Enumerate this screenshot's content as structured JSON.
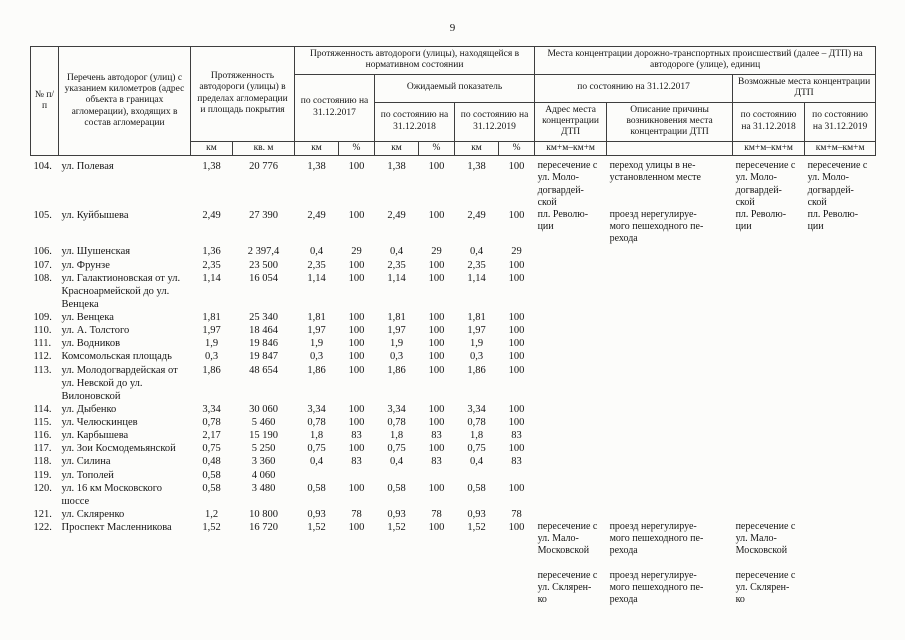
{
  "page": {
    "number": "9"
  },
  "table": {
    "header": {
      "col_num": "№ п/п",
      "col_list": "Перечень автодорог (улиц) с указанием километров (адрес объекта в границах агломерации), входящих в состав агломерации",
      "col_length": "Протяженность автодороги (улицы) в пределах агломерации и площадь покрытия",
      "col_normative": "Протяженность автодороги (улицы), находящейся в нормативном состоянии",
      "col_dtp": "Места концентрации дорожно-транспортных происшествий (далее – ДТП) на автодороге (улице), единиц",
      "as_of_2017": "по состоянию на 31.12.2017",
      "expected": "Ожидаемый показатель",
      "as_of_2018": "по состоянию на 31.12.2018",
      "as_of_2019": "по состоянию на 31.12.2019",
      "dtp_possible": "Возможные места концентрации ДТП",
      "dtp_address": "Адрес места концентрации ДТП",
      "dtp_reason": "Описание причины возникновения места концентрации ДТП",
      "units": {
        "km": "км",
        "sqm": "кв. м",
        "pct": "%",
        "kmm": "км+м–км+м"
      }
    },
    "rows": [
      {
        "num": "104.",
        "name": "ул. Полевая",
        "len_km": "1,38",
        "area": "20 776",
        "km17": "1,38",
        "p17": "100",
        "km18": "1,38",
        "p18": "100",
        "km19": "1,38",
        "p19": "100",
        "addr": "пересечение с\nул. Моло-\nдогвардей-\nской",
        "reason": "переход улицы в не-\nустановленном месте",
        "poss18": "пересечение с\nул. Моло-\nдогвардей-\nской",
        "poss19": "пересечение с\nул. Моло-\nдогвардей-\nской"
      },
      {
        "num": "105.",
        "name": "ул. Куйбышева",
        "len_km": "2,49",
        "area": "27 390",
        "km17": "2,49",
        "p17": "100",
        "km18": "2,49",
        "p18": "100",
        "km19": "2,49",
        "p19": "100",
        "addr": "пл. Револю-\nции",
        "reason": "проезд нерегулируе-\nмого пешеходного пе-\nрехода",
        "poss18": "пл. Револю-\nции",
        "poss19": "пл. Револю-\nции"
      },
      {
        "num": "106.",
        "name": "ул. Шушенская",
        "len_km": "1,36",
        "area": "2 397,4",
        "km17": "0,4",
        "p17": "29",
        "km18": "0,4",
        "p18": "29",
        "km19": "0,4",
        "p19": "29",
        "addr": "",
        "reason": "",
        "poss18": "",
        "poss19": ""
      },
      {
        "num": "107.",
        "name": "ул. Фрунзе",
        "len_km": "2,35",
        "area": "23 500",
        "km17": "2,35",
        "p17": "100",
        "km18": "2,35",
        "p18": "100",
        "km19": "2,35",
        "p19": "100",
        "addr": "",
        "reason": "",
        "poss18": "",
        "poss19": ""
      },
      {
        "num": "108.",
        "name": "ул. Галактионовская от ул. Красноармейской до ул. Венцека",
        "len_km": "1,14",
        "area": "16 054",
        "km17": "1,14",
        "p17": "100",
        "km18": "1,14",
        "p18": "100",
        "km19": "1,14",
        "p19": "100",
        "addr": "",
        "reason": "",
        "poss18": "",
        "poss19": ""
      },
      {
        "num": "109.",
        "name": "ул. Венцека",
        "len_km": "1,81",
        "area": "25 340",
        "km17": "1,81",
        "p17": "100",
        "km18": "1,81",
        "p18": "100",
        "km19": "1,81",
        "p19": "100",
        "addr": "",
        "reason": "",
        "poss18": "",
        "poss19": ""
      },
      {
        "num": "110.",
        "name": "ул. А. Толстого",
        "len_km": "1,97",
        "area": "18 464",
        "km17": "1,97",
        "p17": "100",
        "km18": "1,97",
        "p18": "100",
        "km19": "1,97",
        "p19": "100",
        "addr": "",
        "reason": "",
        "poss18": "",
        "poss19": ""
      },
      {
        "num": "111.",
        "name": "ул. Водников",
        "len_km": "1,9",
        "area": "19 846",
        "km17": "1,9",
        "p17": "100",
        "km18": "1,9",
        "p18": "100",
        "km19": "1,9",
        "p19": "100",
        "addr": "",
        "reason": "",
        "poss18": "",
        "poss19": ""
      },
      {
        "num": "112.",
        "name": "Комсомольская площадь",
        "len_km": "0,3",
        "area": "19 847",
        "km17": "0,3",
        "p17": "100",
        "km18": "0,3",
        "p18": "100",
        "km19": "0,3",
        "p19": "100",
        "addr": "",
        "reason": "",
        "poss18": "",
        "poss19": ""
      },
      {
        "num": "113.",
        "name": "ул. Молодогвардейская от ул. Невской до ул. Вилоновской",
        "len_km": "1,86",
        "area": "48 654",
        "km17": "1,86",
        "p17": "100",
        "km18": "1,86",
        "p18": "100",
        "km19": "1,86",
        "p19": "100",
        "addr": "",
        "reason": "",
        "poss18": "",
        "poss19": ""
      },
      {
        "num": "114.",
        "name": "ул. Дыбенко",
        "len_km": "3,34",
        "area": "30 060",
        "km17": "3,34",
        "p17": "100",
        "km18": "3,34",
        "p18": "100",
        "km19": "3,34",
        "p19": "100",
        "addr": "",
        "reason": "",
        "poss18": "",
        "poss19": ""
      },
      {
        "num": "115.",
        "name": "ул. Челюскинцев",
        "len_km": "0,78",
        "area": "5 460",
        "km17": "0,78",
        "p17": "100",
        "km18": "0,78",
        "p18": "100",
        "km19": "0,78",
        "p19": "100",
        "addr": "",
        "reason": "",
        "poss18": "",
        "poss19": ""
      },
      {
        "num": "116.",
        "name": "ул. Карбышева",
        "len_km": "2,17",
        "area": "15 190",
        "km17": "1,8",
        "p17": "83",
        "km18": "1,8",
        "p18": "83",
        "km19": "1,8",
        "p19": "83",
        "addr": "",
        "reason": "",
        "poss18": "",
        "poss19": ""
      },
      {
        "num": "117.",
        "name": "ул. Зои Космодемьянской",
        "len_km": "0,75",
        "area": "5 250",
        "km17": "0,75",
        "p17": "100",
        "km18": "0,75",
        "p18": "100",
        "km19": "0,75",
        "p19": "100",
        "addr": "",
        "reason": "",
        "poss18": "",
        "poss19": ""
      },
      {
        "num": "118.",
        "name": "ул. Силина",
        "len_km": "0,48",
        "area": "3 360",
        "km17": "0,4",
        "p17": "83",
        "km18": "0,4",
        "p18": "83",
        "km19": "0,4",
        "p19": "83",
        "addr": "",
        "reason": "",
        "poss18": "",
        "poss19": ""
      },
      {
        "num": "119.",
        "name": "ул. Тополей",
        "len_km": "0,58",
        "area": "4 060",
        "km17": "",
        "p17": "",
        "km18": "",
        "p18": "",
        "km19": "",
        "p19": "",
        "addr": "",
        "reason": "",
        "poss18": "",
        "poss19": ""
      },
      {
        "num": "120.",
        "name": "ул. 16 км Московского шоссе",
        "len_km": "0,58",
        "area": "3 480",
        "km17": "0,58",
        "p17": "100",
        "km18": "0,58",
        "p18": "100",
        "km19": "0,58",
        "p19": "100",
        "addr": "",
        "reason": "",
        "poss18": "",
        "poss19": ""
      },
      {
        "num": "121.",
        "name": "ул. Скляренко",
        "len_km": "1,2",
        "area": "10 800",
        "km17": "0,93",
        "p17": "78",
        "km18": "0,93",
        "p18": "78",
        "km19": "0,93",
        "p19": "78",
        "addr": "",
        "reason": "",
        "poss18": "",
        "poss19": ""
      },
      {
        "num": "122.",
        "name": "Проспект Масленникова",
        "len_km": "1,52",
        "area": "16 720",
        "km17": "1,52",
        "p17": "100",
        "km18": "1,52",
        "p18": "100",
        "km19": "1,52",
        "p19": "100",
        "addr": "пересечение с\nул. Мало-\nМосковской\n\nпересечение с\nул. Склярен-\nко",
        "reason": "проезд нерегулируе-\nмого пешеходного пе-\nрехода\n\nпроезд нерегулируе-\nмого пешеходного пе-\nрехода",
        "poss18": "пересечение с\nул. Мало-\nМосковской\n\nпересечение с\nул. Склярен-\nко",
        "poss19": ""
      }
    ]
  }
}
